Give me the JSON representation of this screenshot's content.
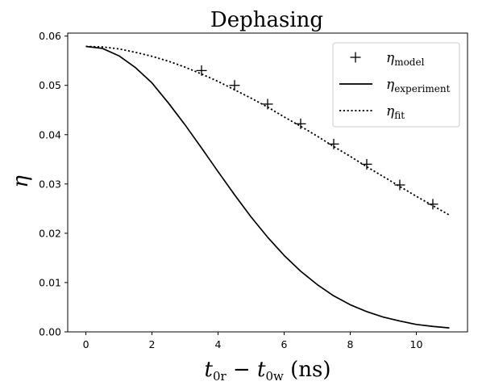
{
  "chart_data": {
    "type": "line",
    "title": "Dephasing",
    "xlabel": {
      "t1": "t",
      "s1": "0r",
      "op": " − ",
      "t2": "t",
      "s2": "0w",
      "unit": " (ns)"
    },
    "ylabel": "η",
    "xlim": [
      -0.55,
      11.55
    ],
    "ylim": [
      0,
      0.0606
    ],
    "xticks": [
      0,
      2,
      4,
      6,
      8,
      10
    ],
    "xtick_labels": [
      "0",
      "2",
      "4",
      "6",
      "8",
      "10"
    ],
    "yticks": [
      0,
      0.01,
      0.02,
      0.03,
      0.04,
      0.05,
      0.06
    ],
    "ytick_labels": [
      "0.00",
      "0.01",
      "0.02",
      "0.03",
      "0.04",
      "0.05",
      "0.06"
    ],
    "grid": false,
    "legend_position": "top-right",
    "series": [
      {
        "name": {
          "base": "η",
          "sub": "model"
        },
        "style": "markers",
        "marker": "plus",
        "color": "#000000",
        "x": [
          3.5,
          4.5,
          5.5,
          6.5,
          7.5,
          8.5,
          9.5,
          10.5
        ],
        "y": [
          0.053,
          0.05,
          0.0462,
          0.0422,
          0.0381,
          0.034,
          0.0298,
          0.0259
        ]
      },
      {
        "name": {
          "base": "η",
          "sub": "experiment"
        },
        "style": "solid",
        "color": "#000000",
        "x": [
          0,
          0.5,
          1,
          1.5,
          2,
          2.5,
          3,
          3.5,
          4,
          4.5,
          5,
          5.5,
          6,
          6.5,
          7,
          7.5,
          8,
          8.5,
          9,
          9.5,
          10,
          10.5,
          11
        ],
        "y": [
          0.0579,
          0.0575,
          0.056,
          0.0536,
          0.0505,
          0.0464,
          0.042,
          0.0373,
          0.0325,
          0.0278,
          0.0233,
          0.0192,
          0.0155,
          0.0123,
          0.0096,
          0.0073,
          0.0055,
          0.0041,
          0.003,
          0.0022,
          0.0015,
          0.0011,
          0.0008
        ]
      },
      {
        "name": {
          "base": "η",
          "sub": "fit"
        },
        "style": "dotted",
        "color": "#000000",
        "x": [
          0,
          0.5,
          1,
          1.5,
          2,
          2.5,
          3,
          3.5,
          4,
          4.5,
          5,
          5.5,
          6,
          6.5,
          7,
          7.5,
          8,
          8.5,
          9,
          9.5,
          10,
          10.5,
          11
        ],
        "y": [
          0.0579,
          0.0578,
          0.0574,
          0.0567,
          0.0559,
          0.0549,
          0.0537,
          0.0523,
          0.0508,
          0.0491,
          0.0474,
          0.0456,
          0.0436,
          0.0417,
          0.0397,
          0.0376,
          0.0356,
          0.0335,
          0.0315,
          0.0295,
          0.0275,
          0.0256,
          0.0237
        ]
      }
    ]
  }
}
